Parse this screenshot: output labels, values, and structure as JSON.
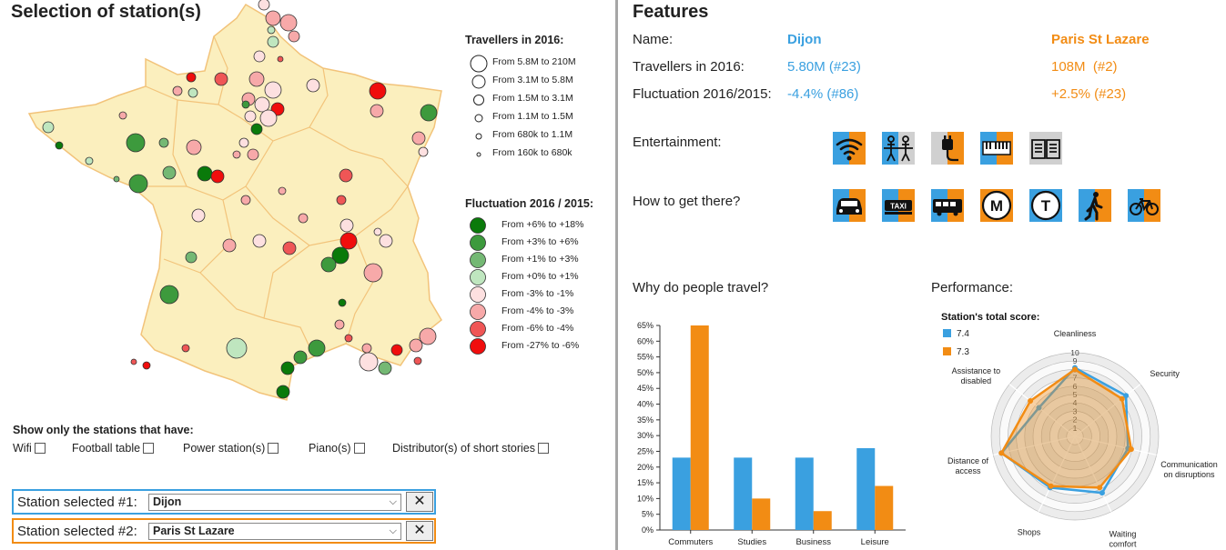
{
  "left_panel": {
    "title": "Selection of station(s)",
    "travellers_legend": {
      "title": "Travellers in 2016:",
      "items": [
        "From 5.8M to 210M",
        "From 3.1M to 5.8M",
        "From 1.5M to 3.1M",
        "From 1.1M to 1.5M",
        "From 680k to 1.1M",
        "From 160k to 680k"
      ]
    },
    "fluctuation_legend": {
      "title": "Fluctuation 2016 / 2015:",
      "items": [
        {
          "label": "From +6% to +18%",
          "color": "#0a7a0a"
        },
        {
          "label": "From +3% to +6%",
          "color": "#3d9a3d"
        },
        {
          "label": "From +1% to +3%",
          "color": "#74b874"
        },
        {
          "label": "From +0% to +1%",
          "color": "#bfe6bf"
        },
        {
          "label": "From -3% to -1%",
          "color": "#fde0e0"
        },
        {
          "label": "From -4% to -3%",
          "color": "#f7a9a9"
        },
        {
          "label": "From -6% to -4%",
          "color": "#ef5656"
        },
        {
          "label": "From -27% to -6%",
          "color": "#f00d0d"
        }
      ]
    },
    "filters": {
      "title": "Show only the stations that have:",
      "items": [
        "Wifi",
        "Football table",
        "Power station(s)",
        "Piano(s)",
        "Distributor(s) of short stories"
      ]
    },
    "selection1": {
      "label": "Station selected #1:",
      "value": "Dijon",
      "color": "#3aa0e0"
    },
    "selection2": {
      "label": "Station selected #2:",
      "value": "Paris St Lazare",
      "color": "#f28c14"
    },
    "remove_label": "✕"
  },
  "right_panel": {
    "title": "Features",
    "name_label": "Name:",
    "station1_name": "Dijon",
    "station2_name": "Paris St Lazare",
    "travellers_label": "Travellers in 2016:",
    "station1_travellers": "5.80M (#23)",
    "station2_travellers": "108M  (#2)",
    "fluct_label": "Fluctuation 2016/2015:",
    "station1_fluct": "-4.4% (#86)",
    "station2_fluct": "+2.5% (#23)",
    "entertainment_label": "Entertainment:",
    "entertainment_icons": [
      "wifi-icon",
      "football-table-icon",
      "power-plug-icon",
      "piano-icon",
      "book-icon"
    ],
    "transport_label": "How to get there?",
    "transport_icons": [
      "car-icon",
      "taxi-icon",
      "bus-icon",
      "metro-icon",
      "tram-icon",
      "walk-icon",
      "bike-icon"
    ],
    "why_label": "Why do people travel?",
    "performance_label": "Performance:",
    "colors": {
      "station1": "#3aa0e0",
      "station2": "#f28c14"
    }
  },
  "chart_data": [
    {
      "type": "bar",
      "categories": [
        "Commuters",
        "Studies",
        "Business",
        "Leisure"
      ],
      "series": [
        {
          "values": [
            23,
            23,
            23,
            26
          ]
        },
        {
          "values": [
            65,
            10,
            6,
            14
          ]
        }
      ],
      "yticks": [
        "0%",
        "5%",
        "10%",
        "15%",
        "20%",
        "25%",
        "30%",
        "35%",
        "40%",
        "45%",
        "50%",
        "55%",
        "60%",
        "65%"
      ],
      "ylim": [
        0,
        65
      ]
    },
    {
      "type": "radar",
      "title": "Station's total score:",
      "axes": [
        "Cleanliness",
        "Security",
        "Communication on disruptions",
        "Waiting comfort",
        "Shops",
        "Distance of access",
        "Assistance to disabled"
      ],
      "rticks": [
        "1",
        "2",
        "3",
        "4",
        "5",
        "6",
        "7",
        "8",
        "9",
        "10"
      ],
      "rlim": [
        0,
        10
      ],
      "series": [
        {
          "name": "7.4",
          "values": [
            8.2,
            7.8,
            6.5,
            7.5,
            6.8,
            9.0,
            5.5
          ]
        },
        {
          "name": "7.3",
          "values": [
            8.0,
            7.2,
            6.9,
            6.8,
            6.6,
            9.0,
            6.8
          ]
        }
      ]
    }
  ]
}
